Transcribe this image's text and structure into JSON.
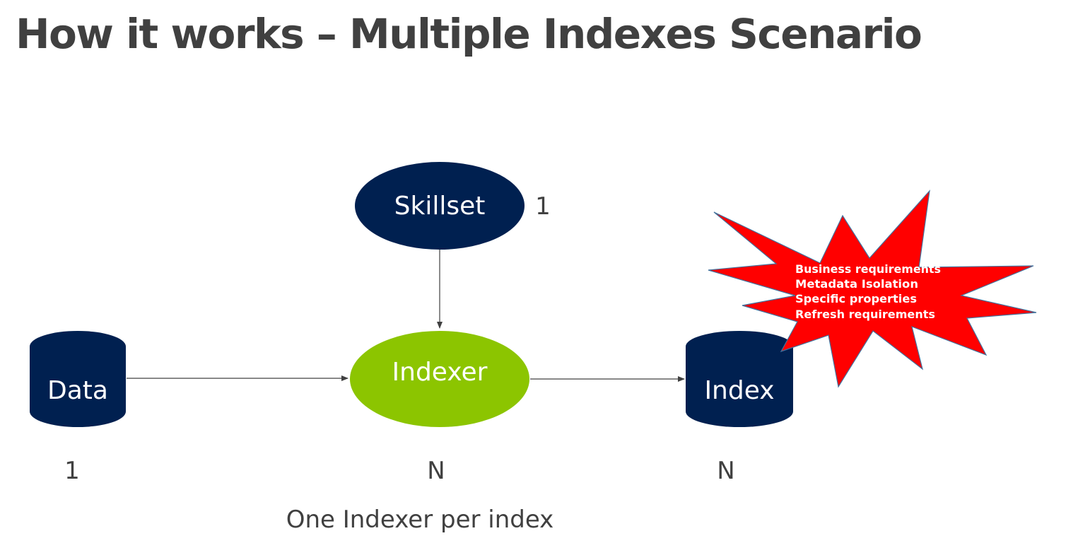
{
  "slide": {
    "title": "How it works – Multiple Indexes Scenario",
    "caption": "One Indexer per index"
  },
  "nodes": {
    "skillset": {
      "label": "Skillset",
      "count": "1",
      "fill": "#002050"
    },
    "data": {
      "label": "Data",
      "count": "1",
      "fill": "#002050"
    },
    "indexer": {
      "label": "Indexer",
      "count": "N",
      "fill": "#8CC500"
    },
    "index": {
      "label": "Index",
      "count": "N",
      "fill": "#002050"
    }
  },
  "callout": {
    "fill": "#FF0000",
    "text_color": "#FFFFFF",
    "lines": [
      "Business requirements",
      "Metadata Isolation",
      "Specific properties",
      "Refresh requirements"
    ]
  },
  "colors": {
    "title": "#404040",
    "count_text": "#404040",
    "connector": "#404040"
  }
}
